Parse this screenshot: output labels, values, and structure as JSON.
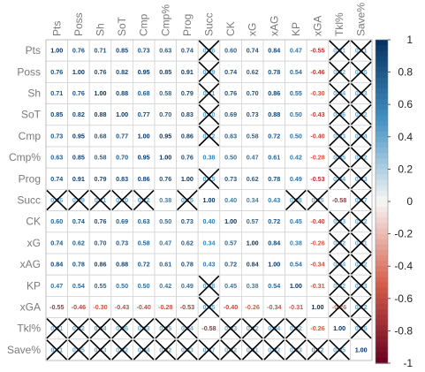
{
  "chart_data": {
    "type": "heatmap",
    "title": "",
    "variables": [
      "Pts",
      "Poss",
      "Sh",
      "SoT",
      "Cmp",
      "Cmp%",
      "Prog",
      "Succ",
      "CK",
      "xG",
      "xAG",
      "KP",
      "xGA",
      "Tkl%",
      "Save%"
    ],
    "matrix": [
      [
        1.0,
        0.76,
        0.71,
        0.85,
        0.73,
        0.63,
        0.74,
        0.06,
        0.6,
        0.74,
        0.84,
        0.47,
        -0.55,
        0.01,
        0.11
      ],
      [
        0.76,
        1.0,
        0.76,
        0.82,
        0.95,
        0.85,
        0.91,
        0.09,
        0.74,
        0.62,
        0.78,
        0.54,
        -0.46,
        0.02,
        0.05
      ],
      [
        0.71,
        0.76,
        1.0,
        0.88,
        0.68,
        0.58,
        0.79,
        0.11,
        0.76,
        0.7,
        0.86,
        0.55,
        -0.3,
        0.04,
        0.03
      ],
      [
        0.85,
        0.82,
        0.88,
        1.0,
        0.77,
        0.7,
        0.83,
        0.1,
        0.69,
        0.73,
        0.88,
        0.5,
        -0.43,
        0.06,
        0.02
      ],
      [
        0.73,
        0.95,
        0.68,
        0.77,
        1.0,
        0.95,
        0.86,
        0.12,
        0.63,
        0.58,
        0.72,
        0.5,
        -0.4,
        0.03,
        0.04
      ],
      [
        0.63,
        0.85,
        0.58,
        0.7,
        0.95,
        1.0,
        0.76,
        0.38,
        0.5,
        0.47,
        0.61,
        0.42,
        -0.28,
        0.05,
        0.02
      ],
      [
        0.74,
        0.91,
        0.79,
        0.83,
        0.86,
        0.76,
        1.0,
        0.15,
        0.73,
        0.62,
        0.78,
        0.49,
        -0.53,
        0.04,
        0.03
      ],
      [
        0.06,
        0.09,
        0.11,
        0.1,
        0.12,
        0.38,
        0.15,
        1.0,
        0.4,
        0.34,
        0.43,
        0.08,
        0.05,
        -0.58,
        0.07
      ],
      [
        0.6,
        0.74,
        0.76,
        0.69,
        0.63,
        0.5,
        0.73,
        0.4,
        1.0,
        0.57,
        0.72,
        0.45,
        -0.4,
        0.03,
        0.02
      ],
      [
        0.74,
        0.62,
        0.7,
        0.73,
        0.58,
        0.47,
        0.62,
        0.34,
        0.57,
        1.0,
        0.84,
        0.38,
        -0.26,
        0.02,
        0.01
      ],
      [
        0.84,
        0.78,
        0.86,
        0.88,
        0.72,
        0.61,
        0.78,
        0.43,
        0.72,
        0.84,
        1.0,
        0.54,
        -0.34,
        0.04,
        0.02
      ],
      [
        0.47,
        0.54,
        0.55,
        0.5,
        0.5,
        0.42,
        0.49,
        0.08,
        0.45,
        0.38,
        0.54,
        1.0,
        -0.31,
        0.02,
        0.03
      ],
      [
        -0.55,
        -0.46,
        -0.3,
        -0.43,
        -0.4,
        -0.28,
        -0.53,
        0.05,
        -0.4,
        -0.26,
        -0.34,
        -0.31,
        1.0,
        -0.26,
        0.12
      ],
      [
        0.01,
        0.02,
        0.04,
        0.06,
        0.03,
        0.05,
        0.04,
        -0.58,
        0.03,
        0.02,
        0.04,
        0.02,
        -0.26,
        1.0,
        0.05
      ],
      [
        0.11,
        0.05,
        0.03,
        0.02,
        0.04,
        0.02,
        0.03,
        0.07,
        0.02,
        0.01,
        0.02,
        0.03,
        0.12,
        0.05,
        1.0
      ]
    ],
    "crossed_cells": [
      [
        0,
        7
      ],
      [
        0,
        13
      ],
      [
        0,
        14
      ],
      [
        1,
        7
      ],
      [
        1,
        13
      ],
      [
        1,
        14
      ],
      [
        2,
        7
      ],
      [
        2,
        13
      ],
      [
        2,
        14
      ],
      [
        3,
        7
      ],
      [
        3,
        13
      ],
      [
        3,
        14
      ],
      [
        4,
        7
      ],
      [
        4,
        13
      ],
      [
        4,
        14
      ],
      [
        5,
        13
      ],
      [
        5,
        14
      ],
      [
        6,
        7
      ],
      [
        6,
        13
      ],
      [
        6,
        14
      ],
      [
        7,
        0
      ],
      [
        7,
        1
      ],
      [
        7,
        2
      ],
      [
        7,
        3
      ],
      [
        7,
        4
      ],
      [
        7,
        6
      ],
      [
        7,
        11
      ],
      [
        7,
        12
      ],
      [
        7,
        14
      ],
      [
        8,
        13
      ],
      [
        8,
        14
      ],
      [
        9,
        13
      ],
      [
        9,
        14
      ],
      [
        10,
        13
      ],
      [
        10,
        14
      ],
      [
        11,
        7
      ],
      [
        11,
        13
      ],
      [
        11,
        14
      ],
      [
        12,
        7
      ],
      [
        12,
        13
      ],
      [
        12,
        14
      ],
      [
        13,
        0
      ],
      [
        13,
        1
      ],
      [
        13,
        2
      ],
      [
        13,
        3
      ],
      [
        13,
        4
      ],
      [
        13,
        5
      ],
      [
        13,
        6
      ],
      [
        13,
        8
      ],
      [
        13,
        9
      ],
      [
        13,
        10
      ],
      [
        13,
        11
      ],
      [
        13,
        14
      ],
      [
        14,
        0
      ],
      [
        14,
        1
      ],
      [
        14,
        2
      ],
      [
        14,
        3
      ],
      [
        14,
        4
      ],
      [
        14,
        5
      ],
      [
        14,
        6
      ],
      [
        14,
        7
      ],
      [
        14,
        8
      ],
      [
        14,
        9
      ],
      [
        14,
        10
      ],
      [
        14,
        11
      ],
      [
        14,
        12
      ],
      [
        14,
        13
      ]
    ],
    "colorbar": {
      "range": [
        -1,
        1
      ],
      "ticks": [
        "1",
        "0.8",
        "0.6",
        "0.4",
        "0.2",
        "0",
        "-0.2",
        "-0.4",
        "-0.6",
        "-0.8",
        "-1"
      ],
      "colors": {
        "neg_strong": "#67001f",
        "neg_mid": "#d6604d",
        "neutral": "#f7f7f7",
        "pos_mid": "#4393c3",
        "pos_strong": "#053061"
      }
    },
    "legend_position": "right"
  }
}
